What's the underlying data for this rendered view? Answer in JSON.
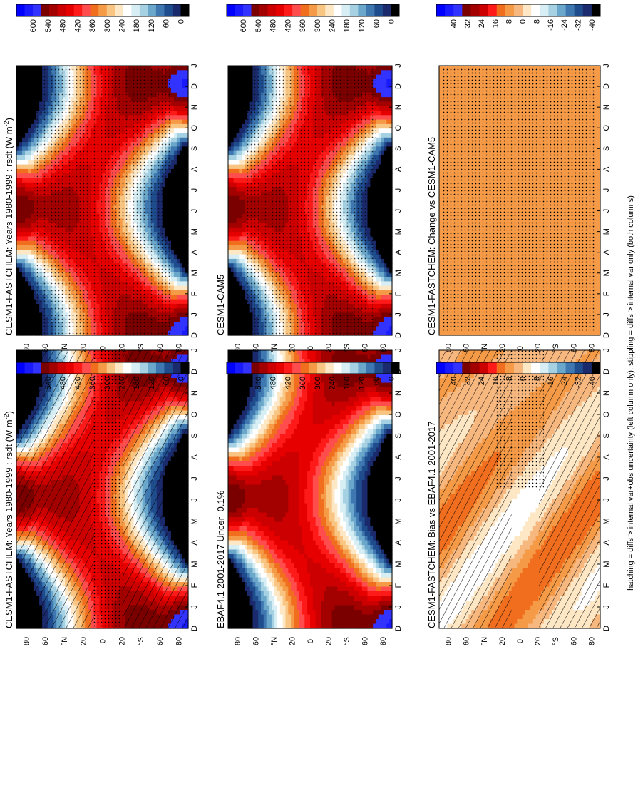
{
  "figure": {
    "footnote": "hatching = diffs > internal var+obs uncertainty (left column only); stippling = diffs > internal var only (both columns)"
  },
  "chart_data": [
    {
      "type": "heatmap",
      "panel": "left-top",
      "title": "CESM1-FASTCHEM: Years 1980-1999 : rsdt (W m",
      "title_unit_tail": "-2",
      "title_close": ")",
      "x": [
        "D",
        "J",
        "F",
        "M",
        "A",
        "M",
        "J",
        "J",
        "A",
        "S",
        "O",
        "N",
        "D",
        "J"
      ],
      "y_ticks": [
        "80",
        "60",
        "°N",
        "20",
        "0",
        "20",
        "°S",
        "60",
        "80"
      ],
      "colorbar_ticks": [
        "600",
        "540",
        "480",
        "420",
        "360",
        "300",
        "240",
        "180",
        "120",
        "60",
        "0"
      ],
      "field": "insolation",
      "hatching": "hatch",
      "stippling": "stipple-equator"
    },
    {
      "type": "heatmap",
      "panel": "right-top",
      "title": "CESM1-FASTCHEM: Years 1980-1999 : rsdt (W m",
      "title_unit_tail": "-2",
      "title_close": ")",
      "x": [
        "D",
        "J",
        "F",
        "M",
        "A",
        "M",
        "J",
        "J",
        "A",
        "S",
        "O",
        "N",
        "D",
        "J"
      ],
      "y_ticks": [
        "80",
        "60",
        "°N",
        "20",
        "0",
        "20",
        "°S",
        "60",
        "80"
      ],
      "colorbar_ticks": [
        "600",
        "540",
        "480",
        "420",
        "360",
        "300",
        "240",
        "180",
        "120",
        "60",
        "0"
      ],
      "field": "insolation",
      "hatching": "none",
      "stippling": "stipple-band"
    },
    {
      "type": "heatmap",
      "panel": "left-middle",
      "title": "EBAF4.1 2001-2017 Uncer=0.1%",
      "x": [
        "D",
        "J",
        "F",
        "M",
        "A",
        "M",
        "J",
        "J",
        "A",
        "S",
        "O",
        "N",
        "D",
        "J"
      ],
      "y_ticks": [
        "80",
        "60",
        "°N",
        "20",
        "0",
        "20",
        "°S",
        "60",
        "80"
      ],
      "colorbar_ticks": [
        "600",
        "540",
        "480",
        "420",
        "360",
        "300",
        "240",
        "180",
        "120",
        "60",
        "0"
      ],
      "field": "insolation",
      "hatching": "none",
      "stippling": "none"
    },
    {
      "type": "heatmap",
      "panel": "right-middle",
      "title": "CESM1-CAM5",
      "x": [
        "D",
        "J",
        "F",
        "M",
        "A",
        "M",
        "J",
        "J",
        "A",
        "S",
        "O",
        "N",
        "D",
        "J"
      ],
      "y_ticks": [
        "80",
        "60",
        "°N",
        "20",
        "0",
        "20",
        "°S",
        "60",
        "80"
      ],
      "colorbar_ticks": [
        "600",
        "540",
        "480",
        "420",
        "360",
        "300",
        "240",
        "180",
        "120",
        "60",
        "0"
      ],
      "field": "insolation",
      "hatching": "none",
      "stippling": "stipple-band"
    },
    {
      "type": "heatmap",
      "panel": "left-bottom",
      "title": "CESM1-FASTCHEM: Bias vs EBAF4.1 2001-2017",
      "x": [
        "D",
        "J",
        "F",
        "M",
        "A",
        "M",
        "J",
        "J",
        "A",
        "S",
        "O",
        "N",
        "D",
        "J"
      ],
      "y_ticks": [
        "80",
        "60",
        "°N",
        "20",
        "0",
        "20",
        "°S",
        "60",
        "80"
      ],
      "colorbar_ticks": [
        "40",
        "32",
        "24",
        "16",
        "8",
        "0",
        "-8",
        "-16",
        "-24",
        "-32",
        "-40"
      ],
      "field": "bias",
      "hatching": "hatch",
      "stippling": "stipple-partial"
    },
    {
      "type": "heatmap",
      "panel": "right-bottom",
      "title": "CESM1-FASTCHEM: Change vs CESM1-CAM5",
      "x": [
        "D",
        "J",
        "F",
        "M",
        "A",
        "M",
        "J",
        "J",
        "A",
        "S",
        "O",
        "N",
        "D",
        "J"
      ],
      "y_ticks": [
        "80",
        "60",
        "°N",
        "20",
        "0",
        "20",
        "°S",
        "60",
        "80"
      ],
      "colorbar_ticks": [
        "40",
        "32",
        "24",
        "16",
        "8",
        "0",
        "-8",
        "-16",
        "-24",
        "-32",
        "-40"
      ],
      "field": "change",
      "hatching": "none",
      "stippling": "stipple-full"
    }
  ],
  "colors": {
    "insolation_scale": [
      "#0000ff",
      "#1a1aff",
      "#3333ff",
      "#7a0000",
      "#a30000",
      "#cc0000",
      "#e60000",
      "#ff1a1a",
      "#ff4d4d",
      "#f06e1e",
      "#f59a46",
      "#f9c582",
      "#fde7c4",
      "#ffffff",
      "#d8eef5",
      "#a5d1e3",
      "#6ba7cb",
      "#3f78b0",
      "#1f4c8d",
      "#1a2a6c",
      "#000000"
    ],
    "anomaly_scale": [
      "#0000ff",
      "#1a1aff",
      "#3333ff",
      "#7a0000",
      "#a30000",
      "#cc0000",
      "#ff1a1a",
      "#f06e1e",
      "#f59a46",
      "#f7b880",
      "#fde7c4",
      "#ffffff",
      "#d8eef5",
      "#a5d1e3",
      "#6ba7cb",
      "#3f78b0",
      "#1f4c8d",
      "#1a2a6c",
      "#000000"
    ]
  }
}
